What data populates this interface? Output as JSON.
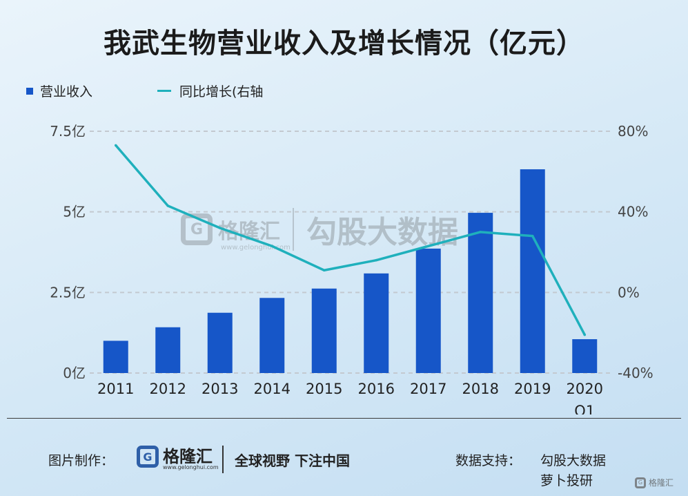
{
  "title": "我武生物营业收入及增长情况（亿元）",
  "legend": {
    "bar_label": "营业收入",
    "line_label": "同比增长(右轴"
  },
  "colors": {
    "bar": "#1656c8",
    "line": "#1fb0bc",
    "grid": "#c3c9d0",
    "axis_text": "#444444"
  },
  "watermark": {
    "brand": "格隆汇",
    "url": "www.gelonghui.com",
    "text": "勾股大数据",
    "g_letter": "G"
  },
  "footer": {
    "made_by_label": "图片制作：",
    "brand_name": "格隆汇",
    "brand_url": "www.gelonghui.com",
    "slogan": "全球视野 下注中国",
    "support_label": "数据支持：",
    "support_line1": "勾股大数据",
    "support_line2": "萝卜投研",
    "corner_brand": "格隆汇"
  },
  "chart_data": {
    "type": "bar",
    "categories": [
      "2011",
      "2012",
      "2013",
      "2014",
      "2015",
      "2016",
      "2017",
      "2018",
      "2019",
      "2020\nQ1"
    ],
    "series": [
      {
        "name": "营业收入",
        "type": "bar",
        "axis": "left",
        "values": [
          1.0,
          1.42,
          1.87,
          2.33,
          2.62,
          3.09,
          3.86,
          4.97,
          6.32,
          1.05
        ]
      },
      {
        "name": "同比增长(右轴",
        "type": "line",
        "axis": "right",
        "values": [
          73,
          43,
          32,
          23,
          11,
          16,
          23,
          30,
          28,
          -21
        ]
      }
    ],
    "y_left": {
      "min": 0,
      "max": 7.5,
      "ticks": [
        "0亿",
        "2.5亿",
        "5亿",
        "7.5亿"
      ],
      "tick_values": [
        0,
        2.5,
        5,
        7.5
      ]
    },
    "y_right": {
      "min": -40,
      "max": 80,
      "ticks": [
        "-40%",
        "0%",
        "40%",
        "80%"
      ],
      "tick_values": [
        -40,
        0,
        40,
        80
      ]
    },
    "grid": true,
    "legend_position": "top-left"
  }
}
